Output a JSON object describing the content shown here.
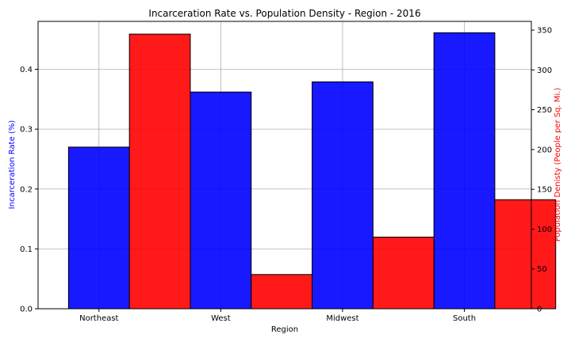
{
  "chart_data": {
    "type": "bar",
    "title": "Incarceration Rate vs. Population Density - Region - 2016",
    "xlabel": "Region",
    "categories": [
      "Northeast",
      "West",
      "Midwest",
      "South"
    ],
    "grid": true,
    "series": [
      {
        "axis": "left",
        "color": "#0000ff",
        "values": [
          0.27,
          0.362,
          0.379,
          0.461
        ]
      },
      {
        "axis": "right",
        "color": "#ff0000",
        "values": [
          345,
          43,
          90,
          137
        ]
      }
    ],
    "y_left": {
      "label": "Incarceration Rate (%)",
      "label_color": "#0000ff",
      "range": [
        0,
        0.48
      ],
      "ticks": [
        0.0,
        0.1,
        0.2,
        0.3,
        0.4
      ],
      "tick_labels": [
        "0.0",
        "0.1",
        "0.2",
        "0.3",
        "0.4"
      ]
    },
    "y_right": {
      "label": "Population Denisty (People per Sq. Mi.)",
      "label_color": "#ff0000",
      "range": [
        0,
        361
      ],
      "ticks": [
        0,
        50,
        100,
        150,
        200,
        250,
        300,
        350
      ],
      "tick_labels": [
        "0",
        "50",
        "100",
        "150",
        "200",
        "250",
        "300",
        "350"
      ]
    }
  }
}
